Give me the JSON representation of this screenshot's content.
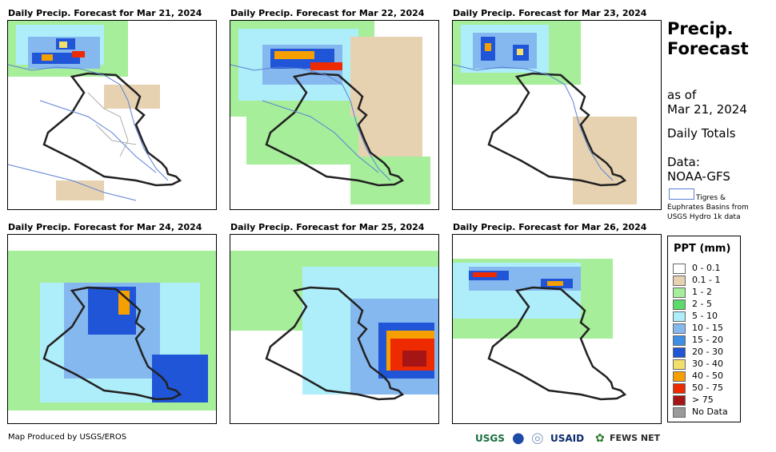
{
  "panels": [
    {
      "title": "Daily Precip. Forecast for Mar 21, 2024"
    },
    {
      "title": "Daily Precip. Forecast for Mar 22, 2024"
    },
    {
      "title": "Daily Precip. Forecast for Mar 23, 2024"
    },
    {
      "title": "Daily Precip. Forecast for Mar 24, 2024"
    },
    {
      "title": "Daily Precip. Forecast for Mar 25, 2024"
    },
    {
      "title": "Daily Precip. Forecast for Mar 26, 2024"
    }
  ],
  "side": {
    "title_line1": "Precip.",
    "title_line2": "Forecast",
    "as_of_label": "as of",
    "as_of_date": "Mar 21, 2024",
    "daily_totals": "Daily Totals",
    "data_label": "Data:",
    "data_source": "NOAA-GFS",
    "basin_line1": "Tigres &",
    "basin_line2": "Euphrates Basins from",
    "basin_line3": "USGS Hydro 1k data"
  },
  "legend": {
    "title": "PPT (mm)",
    "items": [
      {
        "label": "0 - 0.1",
        "color": "#ffffff"
      },
      {
        "label": "0.1 - 1",
        "color": "#e6d2b0"
      },
      {
        "label": "1 - 2",
        "color": "#a6ee9a"
      },
      {
        "label": "2 - 5",
        "color": "#5cdb6a"
      },
      {
        "label": "5 - 10",
        "color": "#aeeefa"
      },
      {
        "label": "10 - 15",
        "color": "#86b8f0"
      },
      {
        "label": "15 - 20",
        "color": "#3f8ee6"
      },
      {
        "label": "20 - 30",
        "color": "#1f55d6"
      },
      {
        "label": "30 - 40",
        "color": "#f3e06a"
      },
      {
        "label": "40 - 50",
        "color": "#f5a000"
      },
      {
        "label": "50 - 75",
        "color": "#ee2a00"
      },
      {
        "label": "> 75",
        "color": "#a51515"
      },
      {
        "label": "No Data",
        "color": "#9a9a9a"
      }
    ]
  },
  "credit": "Map Produced by USGS/EROS",
  "logos": {
    "usgs": "USGS",
    "usaid": "USAID",
    "fews": "FEWS NET"
  }
}
